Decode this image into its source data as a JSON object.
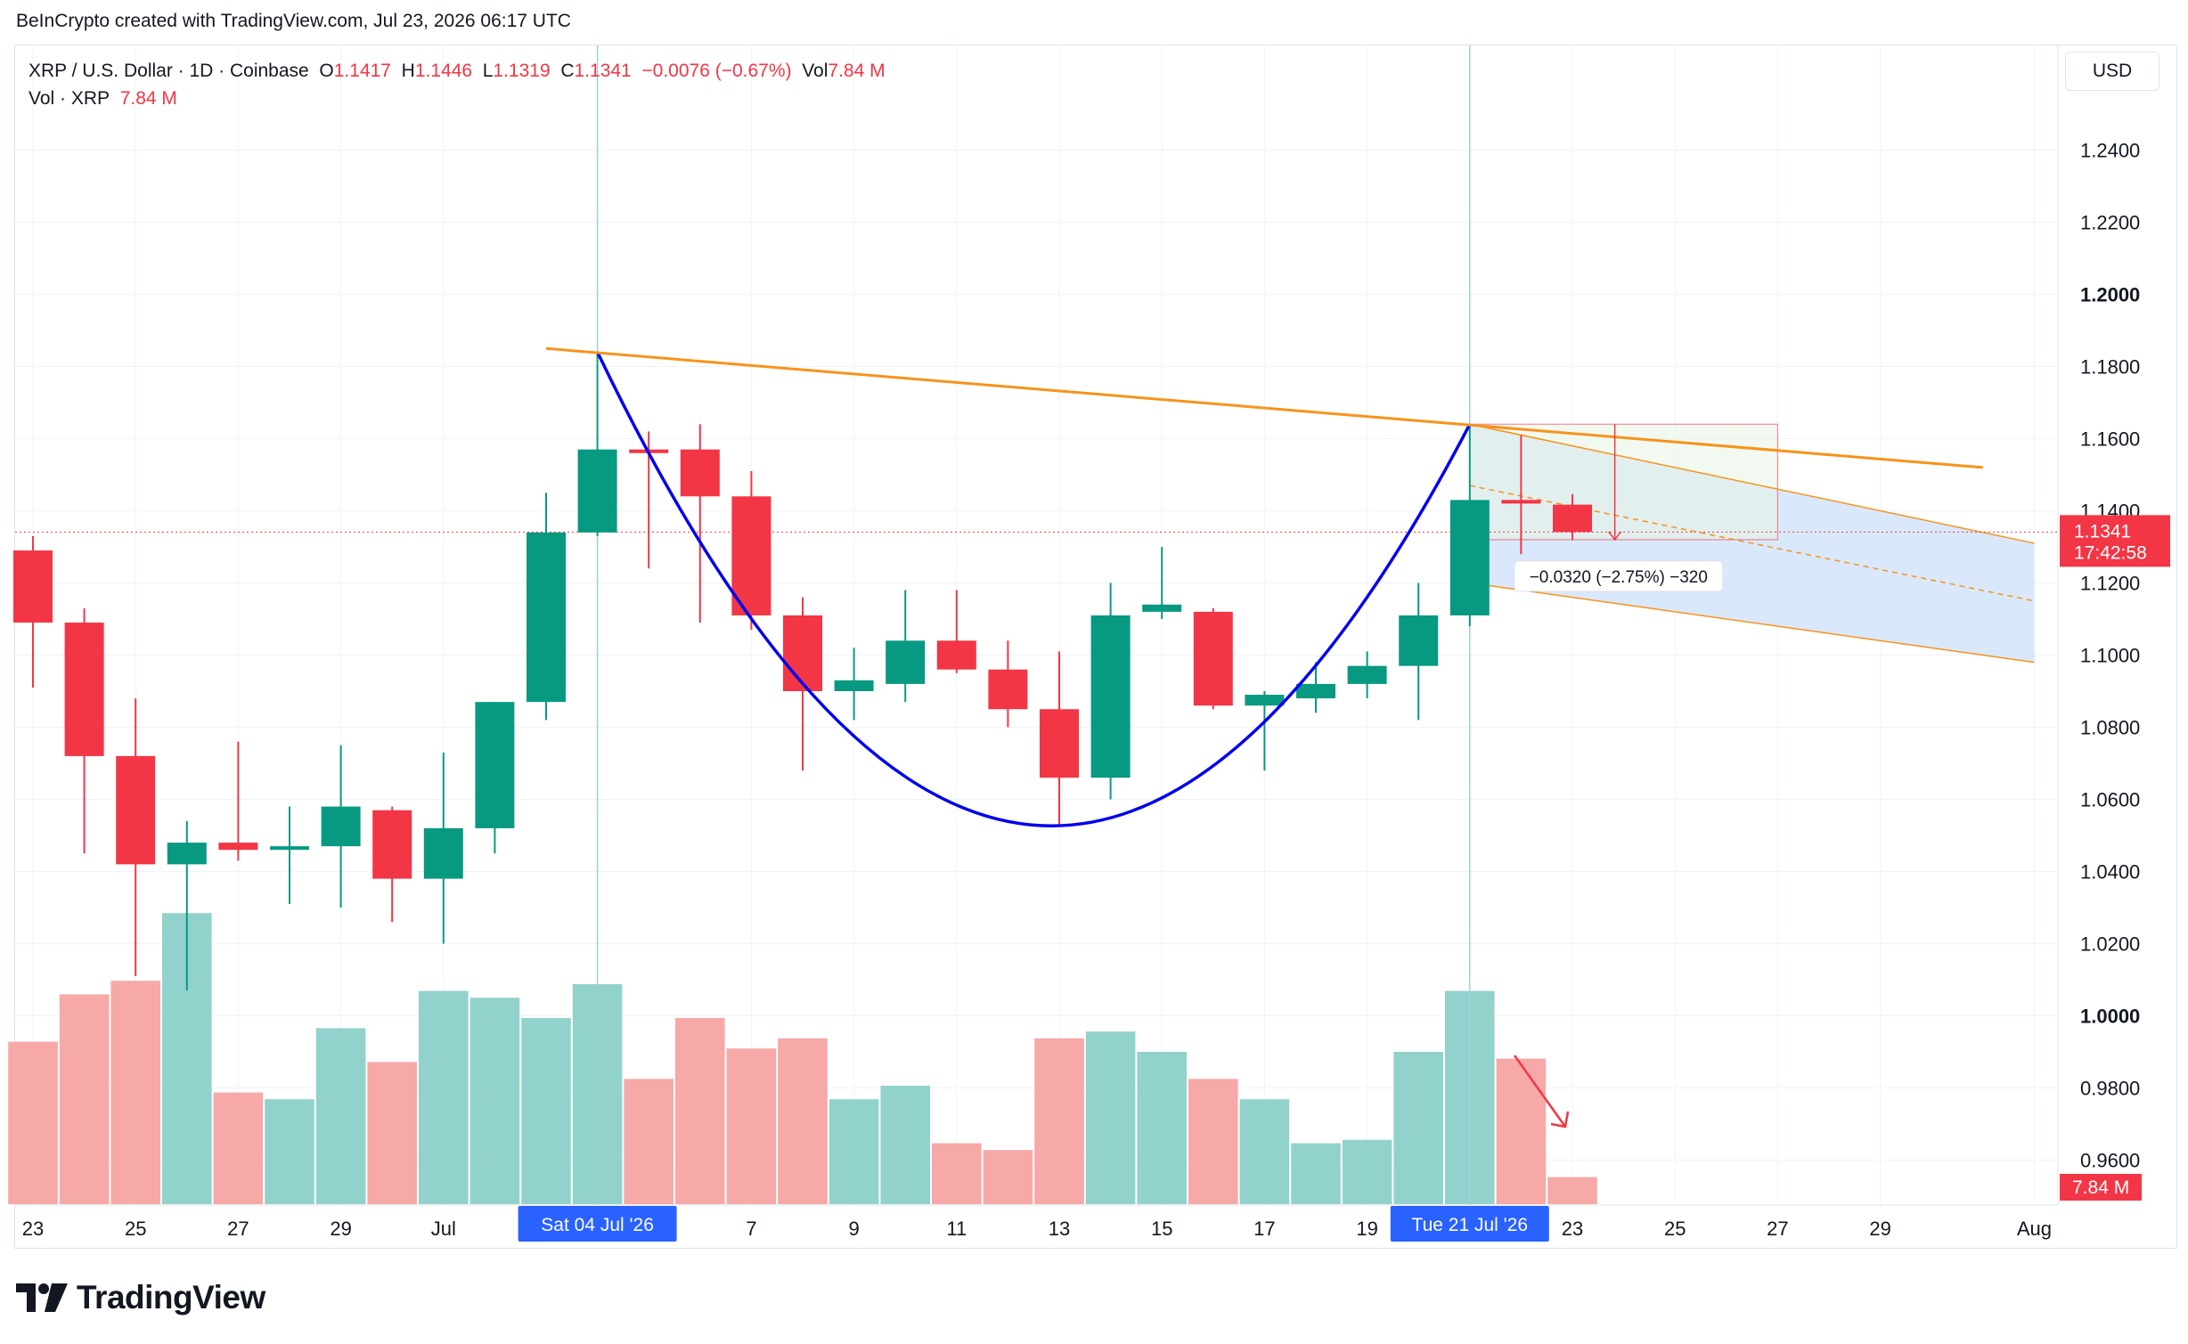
{
  "header": {
    "credit": "BeInCrypto created with TradingView.com, Jul 23, 2026 06:17 UTC"
  },
  "legend": {
    "symbol": "XRP / U.S. Dollar · 1D · Coinbase",
    "open_label": "O",
    "open": "1.1417",
    "high_label": "H",
    "high": "1.1446",
    "low_label": "L",
    "low": "1.1319",
    "close_label": "C",
    "close": "1.1341",
    "change": "−0.0076 (−0.67%)",
    "vol_label": "Vol",
    "vol": "7.84 M",
    "vol_series_label": "Vol · XRP",
    "vol_series_value": "7.84 M"
  },
  "currency": "USD",
  "badges": {
    "price": "1.1341",
    "countdown": "17:42:58",
    "volume": "7.84 M",
    "date_crosshair_1": "Sat 04 Jul '26",
    "date_crosshair_2": "Tue 21 Jul '26"
  },
  "measure_label": "−0.0320 (−2.75%) −320",
  "footer": {
    "brand": "TradingView"
  },
  "colors": {
    "up": "#089981",
    "down": "#f23645",
    "up_vol": "#92d2cc",
    "down_vol": "#f7a9a7",
    "cup": "#0000ee",
    "trendline": "#f7931a",
    "channel_fill": "#d6e6fb"
  },
  "chart_data": {
    "type": "candlestick",
    "y_axis": {
      "min": 0.95,
      "max": 1.262,
      "ticks": [
        "1.2400",
        "1.2200",
        "1.2000",
        "1.1800",
        "1.1600",
        "1.1400",
        "1.1200",
        "1.1000",
        "1.0800",
        "1.0600",
        "1.0400",
        "1.0200",
        "1.0000",
        "0.9800",
        "0.9600"
      ],
      "bold_ticks": [
        "1.2000",
        "1.0000"
      ]
    },
    "x_axis": {
      "ticks": [
        {
          "day": 0,
          "label": "23"
        },
        {
          "day": 2,
          "label": "25"
        },
        {
          "day": 4,
          "label": "27"
        },
        {
          "day": 6,
          "label": "29"
        },
        {
          "day": 8,
          "label": "Jul"
        },
        {
          "day": 14,
          "label": "7"
        },
        {
          "day": 16,
          "label": "9"
        },
        {
          "day": 18,
          "label": "11"
        },
        {
          "day": 20,
          "label": "13"
        },
        {
          "day": 22,
          "label": "15"
        },
        {
          "day": 24,
          "label": "17"
        },
        {
          "day": 26,
          "label": "19"
        },
        {
          "day": 30,
          "label": "23"
        },
        {
          "day": 32,
          "label": "25"
        },
        {
          "day": 34,
          "label": "27"
        },
        {
          "day": 36,
          "label": "29"
        },
        {
          "day": 39,
          "label": "Aug"
        }
      ]
    },
    "candles": [
      {
        "day": 0,
        "o": 1.129,
        "h": 1.133,
        "l": 1.091,
        "c": 1.109,
        "v": 0.48
      },
      {
        "day": 1,
        "o": 1.109,
        "h": 1.113,
        "l": 1.045,
        "c": 1.072,
        "v": 0.62
      },
      {
        "day": 2,
        "o": 1.072,
        "h": 1.088,
        "l": 1.011,
        "c": 1.042,
        "v": 0.66
      },
      {
        "day": 3,
        "o": 1.042,
        "h": 1.054,
        "l": 1.007,
        "c": 1.048,
        "v": 0.86
      },
      {
        "day": 4,
        "o": 1.048,
        "h": 1.076,
        "l": 1.043,
        "c": 1.046,
        "v": 0.33
      },
      {
        "day": 5,
        "o": 1.046,
        "h": 1.058,
        "l": 1.031,
        "c": 1.047,
        "v": 0.31
      },
      {
        "day": 6,
        "o": 1.047,
        "h": 1.075,
        "l": 1.03,
        "c": 1.058,
        "v": 0.52
      },
      {
        "day": 7,
        "o": 1.057,
        "h": 1.058,
        "l": 1.026,
        "c": 1.038,
        "v": 0.42
      },
      {
        "day": 8,
        "o": 1.038,
        "h": 1.073,
        "l": 1.02,
        "c": 1.052,
        "v": 0.63
      },
      {
        "day": 9,
        "o": 1.052,
        "h": 1.087,
        "l": 1.045,
        "c": 1.087,
        "v": 0.61
      },
      {
        "day": 10,
        "o": 1.087,
        "h": 1.145,
        "l": 1.082,
        "c": 1.134,
        "v": 0.55
      },
      {
        "day": 11,
        "o": 1.134,
        "h": 1.184,
        "l": 1.133,
        "c": 1.157,
        "v": 0.65
      },
      {
        "day": 12,
        "o": 1.157,
        "h": 1.162,
        "l": 1.124,
        "c": 1.156,
        "v": 0.37
      },
      {
        "day": 13,
        "o": 1.157,
        "h": 1.164,
        "l": 1.109,
        "c": 1.144,
        "v": 0.55
      },
      {
        "day": 14,
        "o": 1.144,
        "h": 1.151,
        "l": 1.107,
        "c": 1.111,
        "v": 0.46
      },
      {
        "day": 15,
        "o": 1.111,
        "h": 1.116,
        "l": 1.068,
        "c": 1.09,
        "v": 0.49
      },
      {
        "day": 16,
        "o": 1.09,
        "h": 1.102,
        "l": 1.082,
        "c": 1.093,
        "v": 0.31
      },
      {
        "day": 17,
        "o": 1.092,
        "h": 1.118,
        "l": 1.087,
        "c": 1.104,
        "v": 0.35
      },
      {
        "day": 18,
        "o": 1.104,
        "h": 1.118,
        "l": 1.095,
        "c": 1.096,
        "v": 0.18
      },
      {
        "day": 19,
        "o": 1.096,
        "h": 1.104,
        "l": 1.08,
        "c": 1.085,
        "v": 0.16
      },
      {
        "day": 20,
        "o": 1.085,
        "h": 1.101,
        "l": 1.053,
        "c": 1.066,
        "v": 0.49
      },
      {
        "day": 21,
        "o": 1.066,
        "h": 1.12,
        "l": 1.06,
        "c": 1.111,
        "v": 0.51
      },
      {
        "day": 22,
        "o": 1.112,
        "h": 1.13,
        "l": 1.11,
        "c": 1.114,
        "v": 0.45
      },
      {
        "day": 23,
        "o": 1.112,
        "h": 1.113,
        "l": 1.085,
        "c": 1.086,
        "v": 0.37
      },
      {
        "day": 24,
        "o": 1.086,
        "h": 1.09,
        "l": 1.068,
        "c": 1.089,
        "v": 0.31
      },
      {
        "day": 25,
        "o": 1.088,
        "h": 1.098,
        "l": 1.084,
        "c": 1.092,
        "v": 0.18
      },
      {
        "day": 26,
        "o": 1.092,
        "h": 1.101,
        "l": 1.088,
        "c": 1.097,
        "v": 0.19
      },
      {
        "day": 27,
        "o": 1.097,
        "h": 1.12,
        "l": 1.082,
        "c": 1.111,
        "v": 0.45
      },
      {
        "day": 28,
        "o": 1.111,
        "h": 1.164,
        "l": 1.108,
        "c": 1.143,
        "v": 0.63
      },
      {
        "day": 29,
        "o": 1.143,
        "h": 1.161,
        "l": 1.128,
        "c": 1.142,
        "v": 0.43
      },
      {
        "day": 30,
        "o": 1.1417,
        "h": 1.1446,
        "l": 1.1319,
        "c": 1.1341,
        "v": 0.08
      }
    ],
    "current_price": 1.1341,
    "drawings": {
      "cup_points": [
        {
          "day": 11,
          "y": 1.184
        },
        {
          "day": 20.3,
          "y": 1.053
        },
        {
          "day": 28,
          "y": 1.164
        }
      ],
      "trendline": [
        {
          "day": 10,
          "y": 1.185
        },
        {
          "day": 38,
          "y": 1.152
        }
      ],
      "channel_upper": [
        {
          "day": 28,
          "y": 1.164
        },
        {
          "day": 39,
          "y": 1.131
        }
      ],
      "channel_lower": [
        {
          "day": 28,
          "y": 1.12
        },
        {
          "day": 39,
          "y": 1.098
        }
      ],
      "channel_mid": [
        {
          "day": 28,
          "y": 1.147
        },
        {
          "day": 39,
          "y": 1.115
        }
      ],
      "measure_box": {
        "day_start": 28,
        "day_end": 34,
        "y_top": 1.164,
        "y_bottom": 1.132
      },
      "crosshair_days": [
        11,
        28
      ]
    }
  }
}
